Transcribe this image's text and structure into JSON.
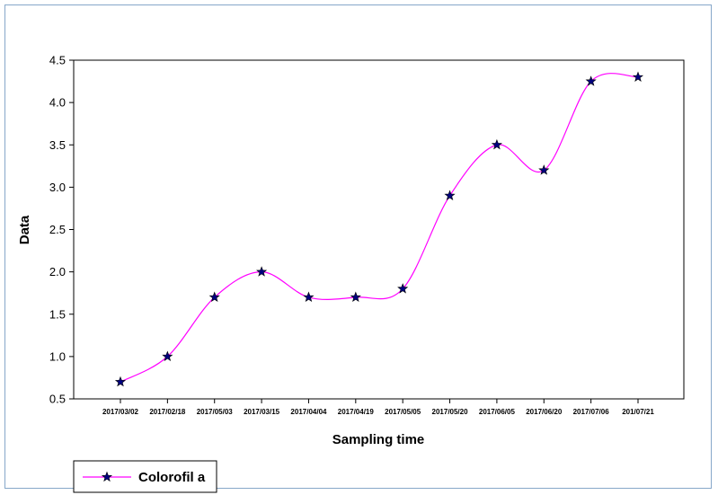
{
  "chart_data": {
    "type": "line",
    "title": "",
    "xlabel": "Sampling time",
    "ylabel": "Data",
    "categories": [
      "2017/03/02",
      "2017/02/18",
      "2017/05/03",
      "2017/03/15",
      "2017/04/04",
      "2017/04/19",
      "2017/05/05",
      "2017/05/20",
      "2017/06/05",
      "2017/06/20",
      "2017/07/06",
      "201/07/21"
    ],
    "series": [
      {
        "name": "Colorofil a",
        "values": [
          0.7,
          1.0,
          1.7,
          2.0,
          1.7,
          1.7,
          1.8,
          2.9,
          3.5,
          3.2,
          4.25,
          4.3
        ]
      }
    ],
    "ylim": [
      0.5,
      4.5
    ],
    "yticks": [
      "0.5",
      "1.0",
      "1.5",
      "2.0",
      "2.5",
      "3.0",
      "3.5",
      "4.0",
      "4.5"
    ],
    "grid": false,
    "legend_position": "bottom-left",
    "colors": {
      "line": "#ff00ff",
      "marker_fill": "#000080",
      "frame_border": "#86a7c9"
    },
    "marker": "star-icon"
  }
}
